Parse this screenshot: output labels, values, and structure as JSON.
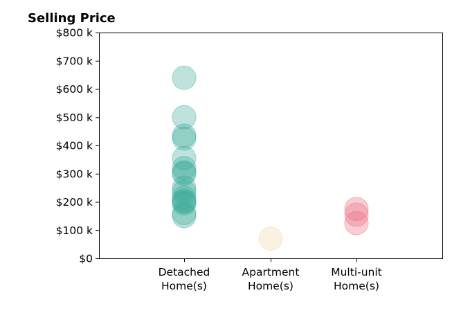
{
  "chart_data": {
    "type": "scatter",
    "title": "Selling Price",
    "xlabel": "",
    "ylabel": "",
    "categories": [
      "Detached\nHome(s)",
      "Apartment\nHome(s)",
      "Multi-unit\nHome(s)"
    ],
    "ylim": [
      0,
      800000
    ],
    "yticks": [
      {
        "value": 0,
        "label": "$0"
      },
      {
        "value": 100000,
        "label": "$100 k"
      },
      {
        "value": 200000,
        "label": "$200 k"
      },
      {
        "value": 300000,
        "label": "$300 k"
      },
      {
        "value": 400000,
        "label": "$400 k"
      },
      {
        "value": 500000,
        "label": "$500 k"
      },
      {
        "value": 600000,
        "label": "$600 k"
      },
      {
        "value": 700000,
        "label": "$700 k"
      },
      {
        "value": 800000,
        "label": "$800 k"
      }
    ],
    "grid": false,
    "series": [
      {
        "category": "Detached\nHome(s)",
        "color": "#3aaa98",
        "values": [
          640000,
          500000,
          435000,
          425000,
          355000,
          320000,
          305000,
          300000,
          250000,
          235000,
          215000,
          205000,
          200000,
          195000,
          160000,
          150000
        ]
      },
      {
        "category": "Apartment\nHome(s)",
        "color": "#f1d9a4",
        "values": [
          70000
        ]
      },
      {
        "category": "Multi-unit\nHome(s)",
        "color": "#ea6a7e",
        "values": [
          175000,
          155000,
          125000
        ]
      }
    ]
  }
}
